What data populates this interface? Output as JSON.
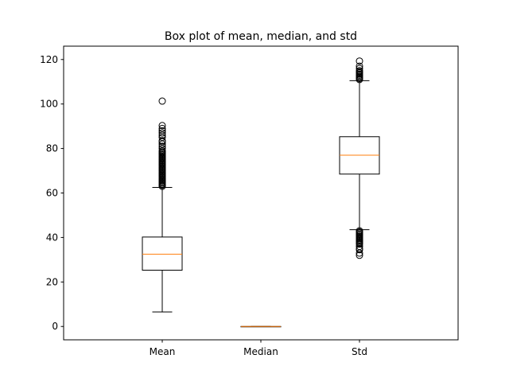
{
  "chart_data": {
    "type": "boxplot",
    "title": "Box plot of mean, median, and std",
    "xlabel": "",
    "ylabel": "",
    "ylim": [
      -6,
      126
    ],
    "yticks": [
      0,
      20,
      40,
      60,
      80,
      100,
      120
    ],
    "ytick_labels": [
      "0",
      "20",
      "40",
      "60",
      "80",
      "100",
      "120"
    ],
    "categories": [
      "Mean",
      "Median",
      "Std"
    ],
    "grid": false,
    "colors": {
      "box": "#000000",
      "median": "#ff7f0e",
      "flier": "#000000"
    },
    "boxes": [
      {
        "name": "Mean",
        "whisker_low": 6.5,
        "q1": 25.3,
        "median": 32.5,
        "q3": 40.2,
        "whisker_high": 62.5,
        "fliers": [
          63,
          63.5,
          64,
          64.5,
          65,
          65.5,
          66,
          66.5,
          67,
          67.5,
          68,
          68.5,
          69,
          69.5,
          70,
          70.5,
          71,
          71.5,
          72,
          72.5,
          73,
          73.5,
          74,
          74.5,
          75,
          75.5,
          76,
          76.5,
          77,
          77.5,
          78,
          78.5,
          79,
          80,
          81,
          82,
          83,
          83.5,
          85,
          86,
          87,
          88,
          89,
          90.3,
          101.3
        ]
      },
      {
        "name": "Median",
        "whisker_low": 0,
        "q1": 0,
        "median": 0,
        "q3": 0,
        "whisker_high": 0,
        "fliers": []
      },
      {
        "name": "Std",
        "whisker_low": 43.5,
        "q1": 68.5,
        "median": 77.0,
        "q3": 85.3,
        "whisker_high": 110.5,
        "fliers": [
          32,
          33,
          34.5,
          35,
          36,
          37,
          37.5,
          38,
          38.5,
          39,
          39.5,
          40,
          40.5,
          41,
          41.5,
          42,
          42.5,
          43,
          111,
          111.5,
          112,
          112.5,
          113,
          113.5,
          114,
          114.5,
          115,
          116,
          117,
          119.3
        ]
      }
    ]
  }
}
